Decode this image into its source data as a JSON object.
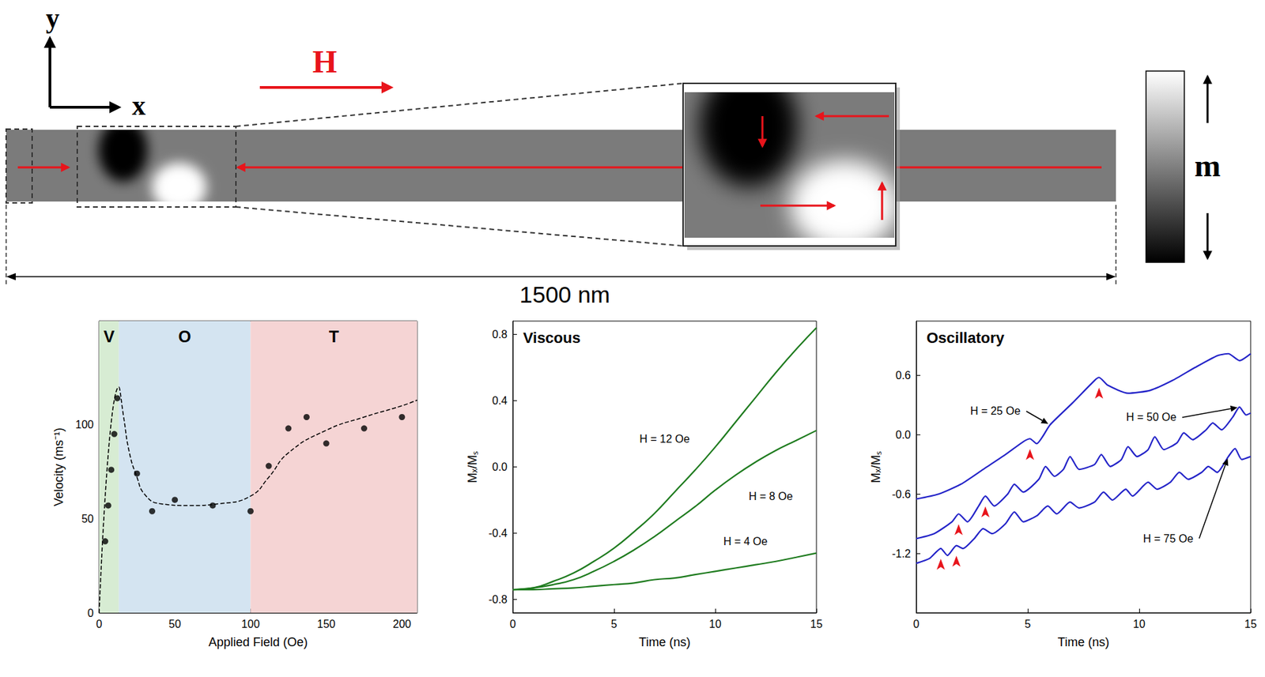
{
  "diagram": {
    "y_axis_label": "y",
    "x_axis_label": "x",
    "field_label": "H",
    "colorbar_label": "m",
    "length_label": "1500 nm"
  },
  "chart_data": [
    {
      "type": "scatter",
      "xlabel": "Applied Field (Oe)",
      "ylabel": "Velocity (ms⁻¹)",
      "xlim": [
        0,
        210
      ],
      "xticks": [
        0,
        50,
        100,
        150,
        200
      ],
      "ylim": [
        0,
        155
      ],
      "yticks": [
        0,
        50,
        100
      ],
      "grid": false,
      "regions": [
        {
          "label": "V",
          "from": 0,
          "to": 13,
          "color": "#d7ecd3"
        },
        {
          "label": "O",
          "from": 13,
          "to": 100,
          "color": "#d4e4f1"
        },
        {
          "label": "T",
          "from": 100,
          "to": 210,
          "color": "#f5d4d4"
        }
      ],
      "series": [
        {
          "type": "scatter",
          "marker": "circle",
          "color": "#000000",
          "x": [
            4,
            6,
            8,
            10,
            12,
            25,
            35,
            50,
            75,
            100,
            112,
            125,
            137,
            150,
            175,
            200
          ],
          "values": [
            38,
            57,
            76,
            95,
            114,
            74,
            54,
            60,
            57,
            54,
            78,
            98,
            104,
            90,
            98,
            104
          ]
        },
        {
          "type": "line",
          "line_style": "dashed",
          "color": "#000000",
          "x": [
            0,
            13,
            16,
            20,
            25,
            30,
            40,
            60,
            80,
            100,
            112,
            125,
            150,
            175,
            200,
            210
          ],
          "values": [
            0,
            120,
            105,
            85,
            72,
            63,
            58,
            57,
            58,
            62,
            72,
            85,
            97,
            104,
            110,
            113
          ]
        }
      ]
    },
    {
      "type": "line",
      "title": "Viscous",
      "xlabel": "Time (ns)",
      "ylabel": "Mₓ/Mₛ",
      "xlim": [
        0,
        15
      ],
      "xticks": [
        0,
        5,
        10,
        15
      ],
      "ylim": [
        -0.88,
        0.88
      ],
      "yticks": [
        -0.8,
        -0.4,
        {
          "value": 0,
          "label": "0.0"
        },
        0.4,
        0.8
      ],
      "grid": false,
      "x": [
        0,
        1,
        2,
        3,
        4,
        5,
        6,
        7,
        8,
        9,
        10,
        11,
        12,
        13,
        14,
        15
      ],
      "series": [
        {
          "name": "H = 12 Oe",
          "color": "#1e7b1e",
          "values": [
            -0.74,
            -0.73,
            -0.69,
            -0.64,
            -0.57,
            -0.49,
            -0.39,
            -0.28,
            -0.15,
            -0.02,
            0.12,
            0.27,
            0.42,
            0.57,
            0.71,
            0.84
          ]
        },
        {
          "name": "H = 8 Oe",
          "color": "#1e7b1e",
          "values": [
            -0.74,
            -0.73,
            -0.71,
            -0.68,
            -0.63,
            -0.57,
            -0.5,
            -0.42,
            -0.33,
            -0.24,
            -0.14,
            -0.05,
            0.03,
            0.1,
            0.16,
            0.22
          ]
        },
        {
          "name": "H = 4 Oe",
          "color": "#1e7b1e",
          "values": [
            -0.74,
            -0.74,
            -0.735,
            -0.73,
            -0.72,
            -0.71,
            -0.7,
            -0.68,
            -0.67,
            -0.65,
            -0.63,
            -0.61,
            -0.59,
            -0.57,
            -0.545,
            -0.52
          ]
        }
      ]
    },
    {
      "type": "line",
      "title": "Oscillatory",
      "xlabel": "Time (ns)",
      "ylabel": "Mₓ/Mₛ",
      "xlim": [
        0,
        15
      ],
      "xticks": [
        0,
        5,
        10,
        15
      ],
      "ylim": [
        -1.8,
        1.15
      ],
      "yticks": [
        -1.2,
        -0.6,
        {
          "value": 0,
          "label": "0.0"
        },
        0.6
      ],
      "grid": false,
      "series": [
        {
          "name": "H = 25 Oe",
          "color": "#2323c8",
          "x": [
            0,
            1,
            2,
            3,
            4,
            4.8,
            5.1,
            5.4,
            6,
            7,
            8,
            8.2,
            8.6,
            9.5,
            10.5,
            11.5,
            12.5,
            13.5,
            14,
            14.5,
            15
          ],
          "values": [
            -0.65,
            -0.6,
            -0.5,
            -0.35,
            -0.2,
            -0.07,
            -0.04,
            -0.09,
            0.1,
            0.32,
            0.55,
            0.58,
            0.5,
            0.42,
            0.45,
            0.55,
            0.68,
            0.8,
            0.82,
            0.75,
            0.82
          ],
          "peaks": [
            5.1,
            8.2
          ]
        },
        {
          "name": "H = 50 Oe",
          "color": "#2323c8",
          "x": [
            0,
            0.8,
            1.6,
            1.9,
            2.3,
            2.8,
            3.1,
            3.5,
            4.1,
            4.4,
            4.8,
            5.5,
            5.8,
            6.2,
            6.6,
            6.9,
            7.3,
            8.0,
            8.3,
            8.7,
            9.2,
            9.5,
            9.9,
            10.4,
            10.7,
            11.1,
            11.7,
            12.0,
            12.4,
            13.0,
            13.3,
            13.7,
            14.2,
            14.5,
            14.8,
            15
          ],
          "values": [
            -1.05,
            -1.0,
            -0.88,
            -0.8,
            -0.88,
            -0.72,
            -0.62,
            -0.72,
            -0.6,
            -0.5,
            -0.58,
            -0.45,
            -0.32,
            -0.42,
            -0.35,
            -0.22,
            -0.35,
            -0.3,
            -0.2,
            -0.32,
            -0.25,
            -0.12,
            -0.22,
            -0.15,
            -0.02,
            -0.15,
            -0.08,
            0.02,
            -0.05,
            0.05,
            0.12,
            0.05,
            0.18,
            0.28,
            0.2,
            0.22
          ],
          "peaks": [
            1.9,
            3.1
          ]
        },
        {
          "name": "H = 75 Oe",
          "color": "#2323c8",
          "x": [
            0,
            0.6,
            1.1,
            1.4,
            1.8,
            2.1,
            2.6,
            3.0,
            3.4,
            4.0,
            4.4,
            4.8,
            5.4,
            5.9,
            6.3,
            6.9,
            7.3,
            8.0,
            8.4,
            8.8,
            9.4,
            9.7,
            10.4,
            10.8,
            11.4,
            11.8,
            12.2,
            12.8,
            13.1,
            13.5,
            14.0,
            14.3,
            14.6,
            15
          ],
          "values": [
            -1.3,
            -1.25,
            -1.15,
            -1.22,
            -1.12,
            -1.15,
            -1.05,
            -0.95,
            -1.0,
            -0.9,
            -0.78,
            -0.88,
            -0.82,
            -0.72,
            -0.8,
            -0.68,
            -0.74,
            -0.68,
            -0.58,
            -0.66,
            -0.55,
            -0.62,
            -0.48,
            -0.55,
            -0.48,
            -0.38,
            -0.45,
            -0.38,
            -0.32,
            -0.38,
            -0.22,
            -0.14,
            -0.25,
            -0.22
          ],
          "peaks": [
            1.1,
            1.8
          ]
        }
      ]
    }
  ]
}
